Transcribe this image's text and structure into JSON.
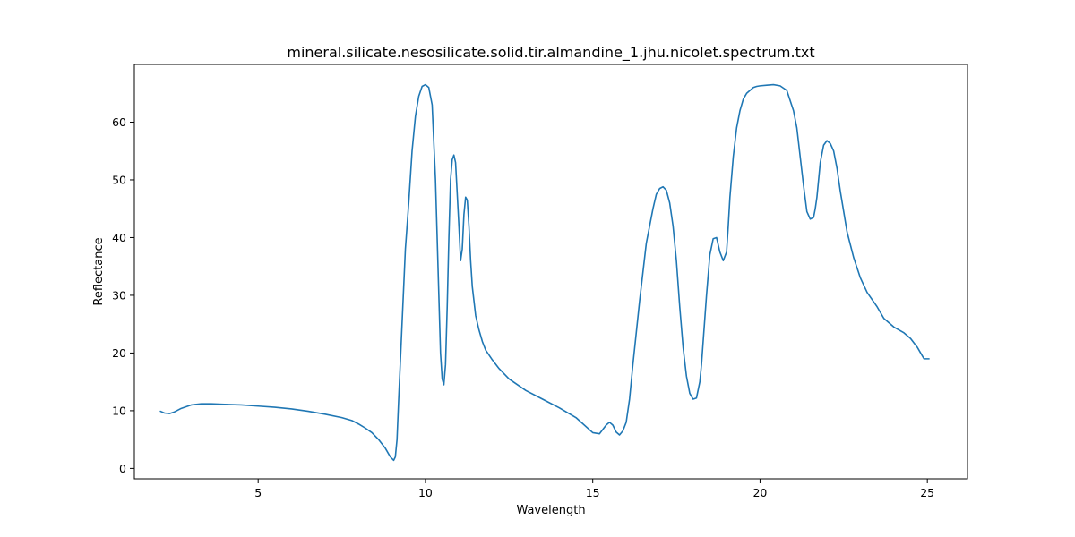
{
  "chart_data": {
    "type": "line",
    "title": "mineral.silicate.nesosilicate.solid.tir.almandine_1.jhu.nicolet.spectrum.txt",
    "xlabel": "Wavelength",
    "ylabel": "Reflectance",
    "xlim": [
      1.3,
      26.2
    ],
    "ylim": [
      -1.8,
      70.0
    ],
    "xticks": [
      5,
      10,
      15,
      20,
      25
    ],
    "yticks": [
      0,
      10,
      20,
      30,
      40,
      50,
      60
    ],
    "grid": false,
    "legend": "none",
    "colors": {
      "series": "#1f77b4"
    },
    "series": [
      {
        "x": [
          2.08,
          2.2,
          2.35,
          2.5,
          2.7,
          3.0,
          3.3,
          3.6,
          4.0,
          4.5,
          5.0,
          5.5,
          6.0,
          6.5,
          7.0,
          7.5,
          7.8,
          8.0,
          8.2,
          8.4,
          8.6,
          8.8,
          8.95,
          9.05,
          9.1,
          9.15,
          9.2,
          9.3,
          9.4,
          9.5,
          9.6,
          9.7,
          9.8,
          9.9,
          10.0,
          10.1,
          10.2,
          10.3,
          10.4,
          10.45,
          10.5,
          10.55,
          10.6,
          10.65,
          10.7,
          10.75,
          10.8,
          10.85,
          10.9,
          11.0,
          11.05,
          11.1,
          11.15,
          11.2,
          11.25,
          11.3,
          11.35,
          11.4,
          11.45,
          11.5,
          11.6,
          11.7,
          11.8,
          12.0,
          12.2,
          12.5,
          13.0,
          13.5,
          14.0,
          14.5,
          15.0,
          15.2,
          15.4,
          15.5,
          15.6,
          15.7,
          15.8,
          15.9,
          16.0,
          16.1,
          16.2,
          16.4,
          16.6,
          16.8,
          16.9,
          17.0,
          17.1,
          17.2,
          17.3,
          17.4,
          17.5,
          17.6,
          17.7,
          17.8,
          17.9,
          18.0,
          18.1,
          18.2,
          18.25,
          18.3,
          18.4,
          18.5,
          18.6,
          18.7,
          18.8,
          18.9,
          19.0,
          19.05,
          19.1,
          19.2,
          19.3,
          19.4,
          19.5,
          19.6,
          19.7,
          19.8,
          19.9,
          20.0,
          20.2,
          20.4,
          20.6,
          20.8,
          21.0,
          21.1,
          21.2,
          21.3,
          21.4,
          21.5,
          21.6,
          21.65,
          21.7,
          21.8,
          21.9,
          22.0,
          22.1,
          22.2,
          22.3,
          22.4,
          22.5,
          22.6,
          22.8,
          23.0,
          23.2,
          23.5,
          23.7,
          24.0,
          24.3,
          24.5,
          24.7,
          24.8,
          24.9,
          25.05
        ],
        "values": [
          9.9,
          9.6,
          9.5,
          9.8,
          10.4,
          11.0,
          11.2,
          11.2,
          11.1,
          11.0,
          10.8,
          10.6,
          10.3,
          9.9,
          9.4,
          8.8,
          8.3,
          7.7,
          7.0,
          6.2,
          5.0,
          3.5,
          2.0,
          1.4,
          2.0,
          5.0,
          12.0,
          25.0,
          38.0,
          46.0,
          55.0,
          61.0,
          64.5,
          66.2,
          66.5,
          66.0,
          63.0,
          50.0,
          30.0,
          20.0,
          15.5,
          14.5,
          18.0,
          28.0,
          40.0,
          50.0,
          53.5,
          54.3,
          53.0,
          42.0,
          36.0,
          38.0,
          44.0,
          47.0,
          46.5,
          42.0,
          36.0,
          31.5,
          29.0,
          26.5,
          24.0,
          22.0,
          20.5,
          18.8,
          17.3,
          15.5,
          13.5,
          12.0,
          10.5,
          8.8,
          6.2,
          6.0,
          7.5,
          8.0,
          7.5,
          6.3,
          5.8,
          6.5,
          8.0,
          12.0,
          18.0,
          29.0,
          39.0,
          45.0,
          47.5,
          48.5,
          48.8,
          48.2,
          46.0,
          42.0,
          36.0,
          28.0,
          21.0,
          16.0,
          13.0,
          12.0,
          12.2,
          15.0,
          18.0,
          22.0,
          30.0,
          37.0,
          39.8,
          40.0,
          37.5,
          36.0,
          37.5,
          42.0,
          47.0,
          54.0,
          59.0,
          62.0,
          64.0,
          65.0,
          65.5,
          66.0,
          66.2,
          66.3,
          66.4,
          66.5,
          66.3,
          65.5,
          62.0,
          59.0,
          54.0,
          49.0,
          44.5,
          43.2,
          43.5,
          45.0,
          47.0,
          53.0,
          56.0,
          56.8,
          56.3,
          55.0,
          52.0,
          48.0,
          44.5,
          41.0,
          36.5,
          33.0,
          30.5,
          28.0,
          26.0,
          24.5,
          23.5,
          22.5,
          21.0,
          20.0,
          19.0,
          19.0
        ]
      }
    ]
  }
}
